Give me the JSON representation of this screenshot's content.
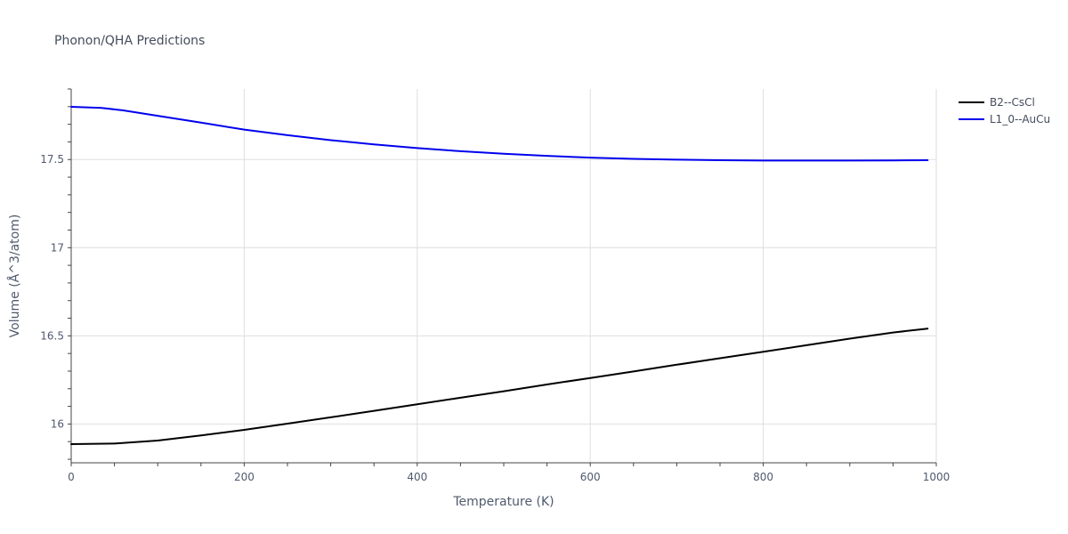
{
  "chart_data": {
    "type": "line",
    "title": "Phonon/QHA Predictions",
    "xlabel": "Temperature (K)",
    "ylabel": "Volume (Å^3/atom)",
    "xlim": [
      0,
      1000
    ],
    "ylim": [
      15.78,
      17.9
    ],
    "xticks": [
      0,
      200,
      400,
      600,
      800,
      1000
    ],
    "xtick_labels": [
      "0",
      "200",
      "400",
      "600",
      "800",
      "1000"
    ],
    "yticks": [
      16,
      16.5,
      17,
      17.5
    ],
    "ytick_labels": [
      "16",
      "16.5",
      "17",
      "17.5"
    ],
    "grid": true,
    "legend_position": "top-right",
    "series": [
      {
        "name": "B2--CsCl",
        "color": "#000000",
        "x": [
          0,
          50,
          100,
          150,
          200,
          250,
          300,
          350,
          400,
          450,
          500,
          550,
          600,
          650,
          700,
          750,
          800,
          850,
          900,
          950,
          990
        ],
        "y": [
          15.886,
          15.889,
          15.906,
          15.935,
          15.967,
          16.002,
          16.038,
          16.075,
          16.112,
          16.149,
          16.186,
          16.224,
          16.261,
          16.298,
          16.336,
          16.373,
          16.41,
          16.447,
          16.484,
          16.519,
          16.541
        ]
      },
      {
        "name": "L1_0--AuCu",
        "color": "#0000ee",
        "x": [
          0,
          35,
          60,
          100,
          150,
          200,
          250,
          300,
          350,
          400,
          450,
          500,
          550,
          600,
          650,
          700,
          750,
          800,
          850,
          900,
          950,
          990
        ],
        "y": [
          17.799,
          17.793,
          17.779,
          17.748,
          17.709,
          17.67,
          17.638,
          17.61,
          17.586,
          17.565,
          17.547,
          17.533,
          17.521,
          17.511,
          17.504,
          17.499,
          17.496,
          17.494,
          17.494,
          17.494,
          17.495,
          17.496
        ]
      }
    ]
  }
}
